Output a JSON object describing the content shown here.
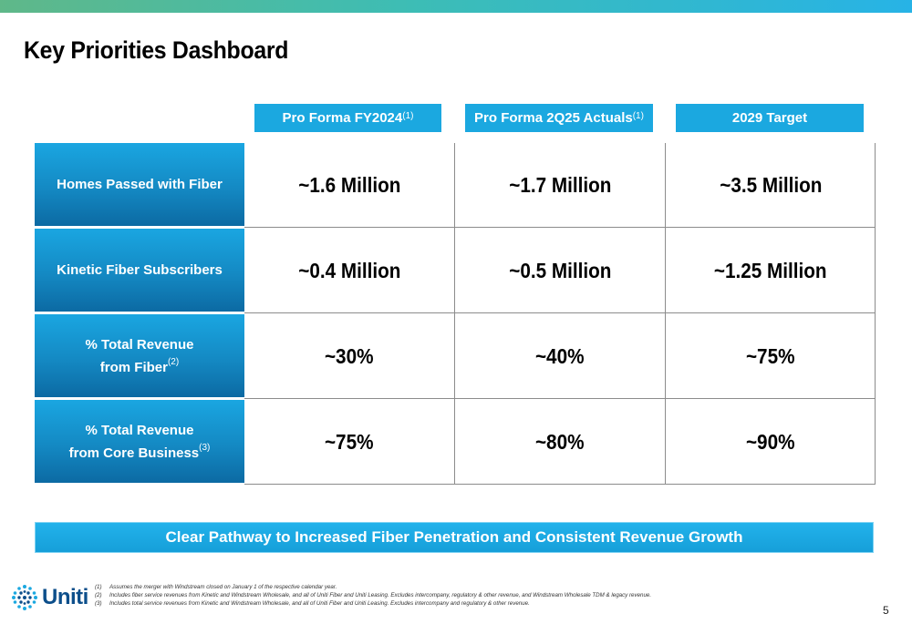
{
  "title": "Key Priorities Dashboard",
  "columns": [
    {
      "label": "Pro Forma FY2024",
      "note": "(1)"
    },
    {
      "label": "Pro Forma 2Q25 Actuals",
      "note": "(1)"
    },
    {
      "label": "2029 Target",
      "note": ""
    }
  ],
  "rows": [
    {
      "label_line1": "Homes Passed with Fiber",
      "label_line2": "",
      "note": "",
      "values": [
        "~1.6 Million",
        "~1.7 Million",
        "~3.5 Million"
      ]
    },
    {
      "label_line1": "Kinetic Fiber Subscribers",
      "label_line2": "",
      "note": "",
      "values": [
        "~0.4 Million",
        "~0.5 Million",
        "~1.25 Million"
      ]
    },
    {
      "label_line1": "% Total Revenue",
      "label_line2": "from Fiber",
      "note": "(2)",
      "values": [
        "~30%",
        "~40%",
        "~75%"
      ]
    },
    {
      "label_line1": "% Total Revenue",
      "label_line2": "from Core Business",
      "note": "(3)",
      "values": [
        "~75%",
        "~80%",
        "~90%"
      ]
    }
  ],
  "banner": "Clear Pathway to Increased Fiber Penetration and Consistent Revenue Growth",
  "logo": {
    "text": "Uniti",
    "icon": "dot-globe-icon",
    "color": "#0d4f8b"
  },
  "footnotes": [
    {
      "num": "(1)",
      "text": "Assumes the merger with Windstream closed on January 1 of the respective calendar year."
    },
    {
      "num": "(2)",
      "text": "Includes fiber service revenues from Kinetic and Windstream Wholesale, and all of Uniti Fiber and Uniti Leasing.  Excludes intercompany, regulatory & other revenue, and Windstream Wholesale TDM & legacy revenue."
    },
    {
      "num": "(3)",
      "text": "Includes total service revenues from Kinetic and Windstream Wholesale, and all of Uniti Fiber and Uniti Leasing.  Excludes intercompany and regulatory & other revenue."
    }
  ],
  "page_number": "5",
  "colors": {
    "accent": "#1ba8e0",
    "row_label_dark": "#0c6aa3",
    "topbar_start": "#5fb889",
    "topbar_end": "#27b3e6"
  }
}
